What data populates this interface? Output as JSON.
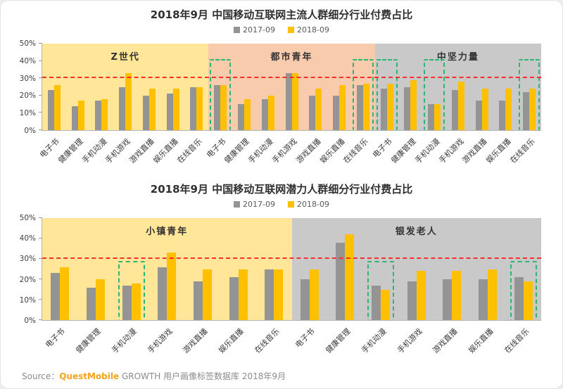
{
  "page": {
    "source": {
      "prefix": "Source：",
      "brand": "QuestMobile",
      "suffix": " GROWTH 用户画像标签数据库 2018年9月"
    }
  },
  "colors": {
    "bar_2017": "#949494",
    "bar_2018": "#ffc000",
    "reference_line": "#fb2e2e",
    "highlight_box": "#2bb673",
    "brand_orange": "#f5a31a"
  },
  "chart_data": [
    {
      "type": "bar",
      "title": "2018年9月 中国移动互联网主流人群细分行业付费占比",
      "legend": [
        "2017-09",
        "2018-09"
      ],
      "ylim": [
        0,
        50
      ],
      "yticks": [
        0,
        10,
        20,
        30,
        40,
        50
      ],
      "ytick_suffix": "%",
      "reference_line": 30,
      "highlight_box_top": 41,
      "legend_position": "top-center",
      "grid": false,
      "groups": [
        {
          "name": "Z世代",
          "band_color": "#ffe699",
          "items": [
            {
              "label": "电子书",
              "v2017": 23,
              "v2018": 26
            },
            {
              "label": "健康管理",
              "v2017": 14,
              "v2018": 17
            },
            {
              "label": "手机动漫",
              "v2017": 17,
              "v2018": 18
            },
            {
              "label": "手机游戏",
              "v2017": 25,
              "v2018": 33
            },
            {
              "label": "游戏直播",
              "v2017": 20,
              "v2018": 24
            },
            {
              "label": "娱乐直播",
              "v2017": 21,
              "v2018": 24
            },
            {
              "label": "在线音乐",
              "v2017": 25,
              "v2018": 25
            }
          ]
        },
        {
          "name": "都市青年",
          "band_color": "#f8cbad",
          "items": [
            {
              "label": "电子书",
              "v2017": 26,
              "v2018": 26,
              "highlight": true
            },
            {
              "label": "健康管理",
              "v2017": 15,
              "v2018": 18
            },
            {
              "label": "手机动漫",
              "v2017": 18,
              "v2018": 20
            },
            {
              "label": "手机游戏",
              "v2017": 33,
              "v2018": 33
            },
            {
              "label": "游戏直播",
              "v2017": 20,
              "v2018": 24
            },
            {
              "label": "娱乐直播",
              "v2017": 20,
              "v2018": 26
            },
            {
              "label": "在线音乐",
              "v2017": 26,
              "v2018": 27,
              "highlight": true
            }
          ]
        },
        {
          "name": "中坚力量",
          "band_color": "#c9c9c9",
          "items": [
            {
              "label": "电子书",
              "v2017": 24,
              "v2018": 27,
              "highlight": true
            },
            {
              "label": "健康管理",
              "v2017": 25,
              "v2018": 29
            },
            {
              "label": "手机动漫",
              "v2017": 15,
              "v2018": 15,
              "highlight": true
            },
            {
              "label": "手机游戏",
              "v2017": 23,
              "v2018": 28
            },
            {
              "label": "游戏直播",
              "v2017": 17,
              "v2018": 24
            },
            {
              "label": "娱乐直播",
              "v2017": 17,
              "v2018": 24
            },
            {
              "label": "在线音乐",
              "v2017": 22,
              "v2018": 24,
              "highlight": true
            }
          ]
        }
      ]
    },
    {
      "type": "bar",
      "title": "2018年9月 中国移动互联网潜力人群细分行业付费占比",
      "legend": [
        "2017-09",
        "2018-09"
      ],
      "ylim": [
        0,
        50
      ],
      "yticks": [
        0,
        10,
        20,
        30,
        40,
        50
      ],
      "ytick_suffix": "%",
      "reference_line": 30,
      "highlight_box_top": 29,
      "legend_position": "top-center",
      "grid": false,
      "groups": [
        {
          "name": "小镇青年",
          "band_color": "#ffe699",
          "items": [
            {
              "label": "电子书",
              "v2017": 23,
              "v2018": 26
            },
            {
              "label": "健康管理",
              "v2017": 16,
              "v2018": 20
            },
            {
              "label": "手机动漫",
              "v2017": 17,
              "v2018": 18,
              "highlight": true
            },
            {
              "label": "手机游戏",
              "v2017": 26,
              "v2018": 33
            },
            {
              "label": "游戏直播",
              "v2017": 19,
              "v2018": 25
            },
            {
              "label": "娱乐直播",
              "v2017": 21,
              "v2018": 25
            },
            {
              "label": "在线音乐",
              "v2017": 25,
              "v2018": 25
            }
          ]
        },
        {
          "name": "银发老人",
          "band_color": "#c9c9c9",
          "items": [
            {
              "label": "电子书",
              "v2017": 20,
              "v2018": 25
            },
            {
              "label": "健康管理",
              "v2017": 38,
              "v2018": 42
            },
            {
              "label": "手机动漫",
              "v2017": 17,
              "v2018": 15,
              "highlight": true
            },
            {
              "label": "手机游戏",
              "v2017": 19,
              "v2018": 24
            },
            {
              "label": "游戏直播",
              "v2017": 20,
              "v2018": 24
            },
            {
              "label": "娱乐直播",
              "v2017": 20,
              "v2018": 25
            },
            {
              "label": "在线音乐",
              "v2017": 21,
              "v2018": 19,
              "highlight": true
            }
          ]
        }
      ]
    }
  ]
}
